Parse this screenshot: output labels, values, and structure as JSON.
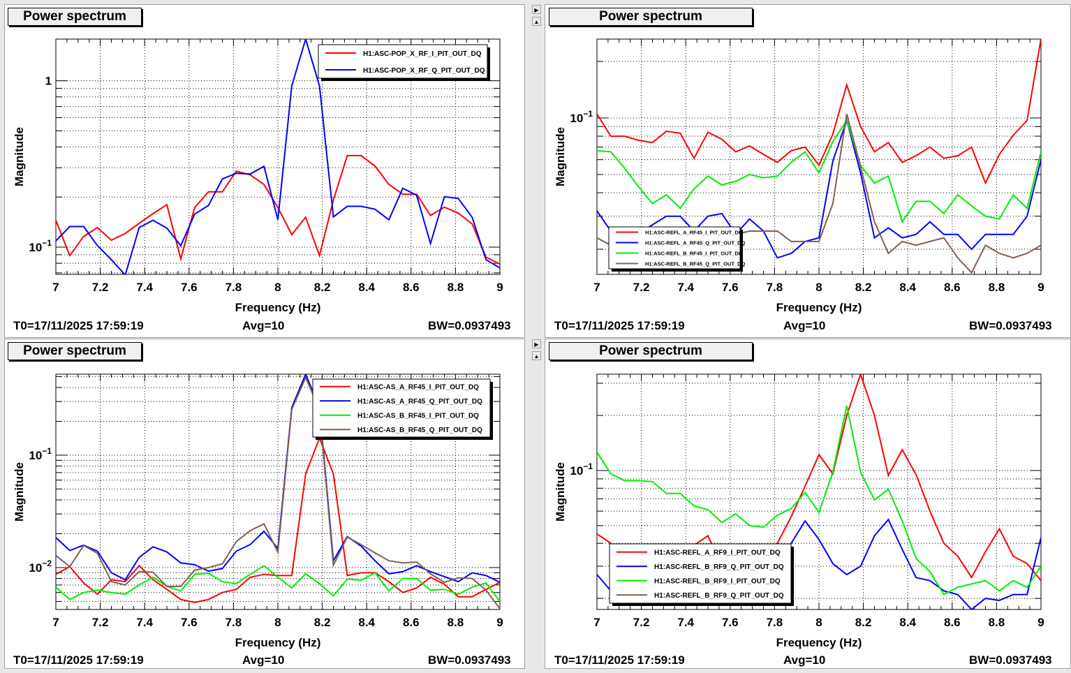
{
  "panels": [
    {
      "title": "Power spectrum",
      "footer": {
        "t0": "T0=17/11/2025 17:59:19",
        "avg": "Avg=10",
        "bw": "BW=0.0937493"
      },
      "chart_data": {
        "type": "line",
        "title": "Power spectrum",
        "xlabel": "Frequency (Hz)",
        "ylabel": "Magnitude",
        "xlim": [
          7,
          9
        ],
        "ylim": [
          0.0686,
          1.78
        ],
        "yscale": "log",
        "grid": true,
        "legend_position": "top-right",
        "xticks": [
          "7",
          "7.2",
          "7.4",
          "7.6",
          "7.8",
          "8",
          "8.2",
          "8.4",
          "8.6",
          "8.8",
          "9"
        ],
        "yticks": [
          {
            "value": 1,
            "label": "1"
          },
          {
            "value": 0.1,
            "label": "10^-1"
          }
        ],
        "x_start": 7,
        "x_step": 0.0625,
        "series": [
          {
            "name": "H1:ASC-POP_X_RF_I_PIT_OUT_DQ",
            "color": "#ff0000",
            "values": [
              0.145,
              0.089,
              0.116,
              0.131,
              0.11,
              0.121,
              0.139,
              0.159,
              0.18,
              0.085,
              0.173,
              0.215,
              0.215,
              0.286,
              0.272,
              0.238,
              0.173,
              0.119,
              0.151,
              0.089,
              0.192,
              0.355,
              0.355,
              0.307,
              0.238,
              0.208,
              0.208,
              0.155,
              0.174,
              0.16,
              0.138,
              0.087,
              0.079
            ]
          },
          {
            "name": "H1:ASC-POP_X_RF_Q_PIT_OUT_DQ",
            "color": "#0000ff",
            "values": [
              0.109,
              0.133,
              0.133,
              0.102,
              0.084,
              0.068,
              0.131,
              0.145,
              0.13,
              0.102,
              0.158,
              0.178,
              0.257,
              0.278,
              0.275,
              0.306,
              0.146,
              0.931,
              1.78,
              0.931,
              0.152,
              0.176,
              0.176,
              0.169,
              0.146,
              0.226,
              0.205,
              0.105,
              0.201,
              0.196,
              0.151,
              0.084,
              0.075
            ]
          }
        ]
      }
    },
    {
      "title": "Power spectrum",
      "footer": {
        "t0": "T0=17/11/2025 17:59:19",
        "avg": "Avg=10",
        "bw": "BW=0.0937493"
      },
      "chart_data": {
        "type": "line",
        "title": "Power spectrum",
        "xlabel": "Frequency (Hz)",
        "ylabel": "Magnitude",
        "xlim": [
          7,
          9
        ],
        "ylim": [
          0.0147,
          0.263
        ],
        "yscale": "log",
        "grid": true,
        "legend_position": "bottom-left",
        "xticks": [
          "7",
          "7.2",
          "7.4",
          "7.6",
          "7.8",
          "8",
          "8.2",
          "8.4",
          "8.6",
          "8.8",
          "9"
        ],
        "yticks": [
          {
            "value": 0.1,
            "label": "10^-1"
          }
        ],
        "x_start": 7,
        "x_step": 0.0625,
        "series": [
          {
            "name": "H1:ASC-REFL_A_RF45_I_PIT_OUT_DQ",
            "color": "#ff0000",
            "values": [
              0.105,
              0.08,
              0.08,
              0.076,
              0.074,
              0.085,
              0.083,
              0.061,
              0.084,
              0.077,
              0.066,
              0.071,
              0.064,
              0.058,
              0.067,
              0.07,
              0.056,
              0.082,
              0.15,
              0.09,
              0.066,
              0.074,
              0.058,
              0.063,
              0.07,
              0.061,
              0.063,
              0.07,
              0.045,
              0.064,
              0.081,
              0.097,
              0.263
            ]
          },
          {
            "name": "H1:ASC-REFL_A_RF45_Q_PIT_OUT_DQ",
            "color": "#0000ff",
            "values": [
              0.032,
              0.025,
              0.024,
              0.024,
              0.027,
              0.03,
              0.03,
              0.025,
              0.03,
              0.031,
              0.024,
              0.029,
              0.025,
              0.018,
              0.019,
              0.022,
              0.023,
              0.059,
              0.097,
              0.051,
              0.023,
              0.026,
              0.023,
              0.024,
              0.028,
              0.024,
              0.024,
              0.02,
              0.024,
              0.024,
              0.024,
              0.03,
              0.06
            ]
          },
          {
            "name": "H1:ASC-REFL_B_RF45_I_PIT_OUT_DQ",
            "color": "#00ee00",
            "values": [
              0.067,
              0.066,
              0.054,
              0.043,
              0.035,
              0.039,
              0.033,
              0.042,
              0.049,
              0.044,
              0.046,
              0.05,
              0.048,
              0.049,
              0.058,
              0.066,
              0.051,
              0.075,
              0.097,
              0.056,
              0.045,
              0.049,
              0.028,
              0.036,
              0.036,
              0.031,
              0.039,
              0.034,
              0.03,
              0.029,
              0.039,
              0.033,
              0.066
            ]
          },
          {
            "name": "H1:ASC-REFL_B_RF45_Q_PIT_OUT_DQ",
            "color": "#806050",
            "values": [
              0.023,
              0.021,
              0.021,
              0.021,
              0.022,
              0.023,
              0.024,
              0.025,
              0.024,
              0.025,
              0.024,
              0.025,
              0.025,
              0.025,
              0.022,
              0.022,
              0.022,
              0.035,
              0.105,
              0.055,
              0.028,
              0.019,
              0.022,
              0.021,
              0.022,
              0.023,
              0.018,
              0.015,
              0.021,
              0.019,
              0.018,
              0.019,
              0.021
            ]
          }
        ]
      }
    },
    {
      "title": "Power spectrum",
      "footer": {
        "t0": "T0=17/11/2025 17:59:19",
        "avg": "Avg=10",
        "bw": "BW=0.0937493"
      },
      "chart_data": {
        "type": "line",
        "title": "Power spectrum",
        "xlabel": "Frequency (Hz)",
        "ylabel": "Magnitude",
        "xlim": [
          7,
          9
        ],
        "ylim": [
          0.00424,
          0.525
        ],
        "yscale": "log",
        "grid": true,
        "legend_position": "top-right",
        "xticks": [
          "7",
          "7.2",
          "7.4",
          "7.6",
          "7.8",
          "8",
          "8.2",
          "8.4",
          "8.6",
          "8.8",
          "9"
        ],
        "yticks": [
          {
            "value": 0.1,
            "label": "10^-1"
          },
          {
            "value": 0.01,
            "label": "10^-2"
          }
        ],
        "x_start": 7,
        "x_step": 0.0625,
        "series": [
          {
            "name": "H1:ASC-AS_A_RF45_I_PIT_OUT_DQ",
            "color": "#ff0000",
            "values": [
              0.0087,
              0.0102,
              0.0073,
              0.0058,
              0.0078,
              0.0075,
              0.0104,
              0.0078,
              0.0064,
              0.0052,
              0.0049,
              0.0052,
              0.006,
              0.0064,
              0.0082,
              0.0087,
              0.0085,
              0.0085,
              0.068,
              0.142,
              0.068,
              0.0085,
              0.009,
              0.009,
              0.0075,
              0.006,
              0.0066,
              0.0082,
              0.0071,
              0.0055,
              0.0055,
              0.0064,
              0.0074
            ]
          },
          {
            "name": "H1:ASC-AS_A_RF45_Q_PIT_OUT_DQ",
            "color": "#0000ff",
            "values": [
              0.0185,
              0.0142,
              0.0158,
              0.014,
              0.009,
              0.0078,
              0.0123,
              0.0153,
              0.0138,
              0.011,
              0.0106,
              0.0093,
              0.0098,
              0.014,
              0.016,
              0.021,
              0.0148,
              0.265,
              0.525,
              0.265,
              0.0115,
              0.0189,
              0.0155,
              0.0115,
              0.0088,
              0.0092,
              0.0104,
              0.0092,
              0.0083,
              0.0075,
              0.009,
              0.0085,
              0.0074
            ]
          },
          {
            "name": "H1:ASC-AS_B_RF45_I_PIT_OUT_DQ",
            "color": "#00ee00",
            "values": [
              0.0067,
              0.0052,
              0.006,
              0.0063,
              0.006,
              0.0058,
              0.007,
              0.0082,
              0.0068,
              0.0062,
              0.0087,
              0.0089,
              0.0075,
              0.0072,
              0.0087,
              0.0104,
              0.0082,
              0.0066,
              0.0088,
              0.0072,
              0.0056,
              0.0079,
              0.0077,
              0.009,
              0.0062,
              0.008,
              0.008,
              0.0063,
              0.0064,
              0.0058,
              0.0067,
              0.0073,
              0.005
            ]
          },
          {
            "name": "H1:ASC-AS_B_RF45_Q_PIT_OUT_DQ",
            "color": "#806050",
            "values": [
              0.0128,
              0.0102,
              0.0157,
              0.0134,
              0.0075,
              0.007,
              0.0092,
              0.0091,
              0.0068,
              0.0068,
              0.0095,
              0.01,
              0.0108,
              0.017,
              0.0213,
              0.0245,
              0.0137,
              0.255,
              0.49,
              0.255,
              0.0105,
              0.0187,
              0.016,
              0.0135,
              0.0115,
              0.011,
              0.0112,
              0.0088,
              0.0074,
              0.0081,
              0.008,
              0.0063,
              0.0043
            ]
          }
        ]
      }
    },
    {
      "title": "Power spectrum",
      "footer": {
        "t0": "T0=17/11/2025 17:59:19",
        "avg": "Avg=10",
        "bw": "BW=0.0937493"
      },
      "chart_data": {
        "type": "line",
        "title": "Power spectrum",
        "xlabel": "Frequency (Hz)",
        "ylabel": "Magnitude",
        "xlim": [
          7,
          9
        ],
        "ylim": [
          0.0174,
          0.336
        ],
        "yscale": "log",
        "grid": true,
        "legend_position": "bottom-left",
        "xticks": [
          "7",
          "7.2",
          "7.4",
          "7.6",
          "7.8",
          "8",
          "8.2",
          "8.4",
          "8.6",
          "8.8",
          "9"
        ],
        "yticks": [
          {
            "value": 0.1,
            "label": "10^-1"
          }
        ],
        "x_start": 7,
        "x_step": 0.0625,
        "series": [
          {
            "name": "H1:ASC-REFL_A_RF9_I_PIT_OUT_DQ",
            "color": "#ff0000",
            "values": [
              0.045,
              0.04,
              0.034,
              0.031,
              0.031,
              0.038,
              0.038,
              0.039,
              0.044,
              0.03,
              0.029,
              0.029,
              0.03,
              0.04,
              0.056,
              0.082,
              0.122,
              0.096,
              0.2,
              0.336,
              0.2,
              0.094,
              0.13,
              0.095,
              0.06,
              0.04,
              0.034,
              0.026,
              0.036,
              0.048,
              0.034,
              0.031,
              0.025
            ]
          },
          {
            "name": "H1:ASC-REFL_B_RF9_Q_PIT_OUT_DQ",
            "color": "#0000ff",
            "values": [
              0.027,
              0.022,
              0.021,
              0.021,
              0.021,
              0.021,
              0.022,
              0.022,
              0.022,
              0.022,
              0.022,
              0.022,
              0.022,
              0.031,
              0.04,
              0.053,
              0.042,
              0.031,
              0.027,
              0.03,
              0.044,
              0.054,
              0.037,
              0.026,
              0.025,
              0.022,
              0.021,
              0.0174,
              0.02,
              0.0195,
              0.021,
              0.021,
              0.043
            ]
          },
          {
            "name": "H1:ASC-REFL_B_RF9_I_PIT_OUT_DQ",
            "color": "#00ee00",
            "values": [
              0.126,
              0.096,
              0.088,
              0.088,
              0.087,
              0.075,
              0.075,
              0.064,
              0.061,
              0.052,
              0.058,
              0.05,
              0.049,
              0.057,
              0.062,
              0.076,
              0.059,
              0.098,
              0.226,
              0.098,
              0.069,
              0.079,
              0.053,
              0.033,
              0.028,
              0.021,
              0.023,
              0.024,
              0.025,
              0.022,
              0.025,
              0.023,
              0.03
            ]
          },
          {
            "name": "H1:ASC-REFL_B_RF9_Q_PIT_OUT_DQ",
            "color": "#806050",
            "values": []
          }
        ]
      }
    }
  ]
}
